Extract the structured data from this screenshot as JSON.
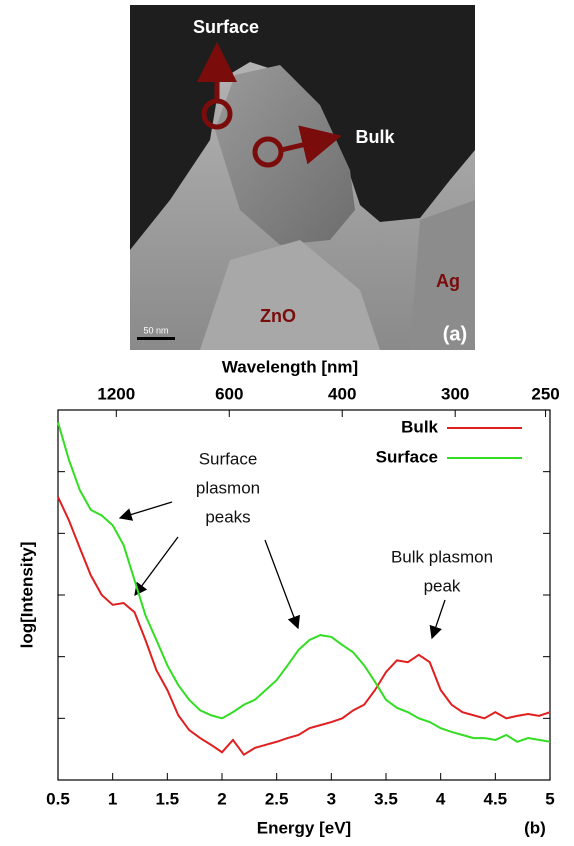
{
  "image": {
    "labels": [
      "Surface",
      "Bulk",
      "ZnO",
      "Ag"
    ],
    "scale_bar": "50 nm",
    "panel": "(a)"
  },
  "chart_data": {
    "type": "line",
    "panel": "(b)",
    "x_label": "Energy [eV]",
    "x2_label": "Wavelength [nm]",
    "y_label": "log[Intensity]",
    "xlim": [
      0.5,
      5
    ],
    "xticks": [
      0.5,
      1,
      1.5,
      2,
      2.5,
      3,
      3.5,
      4,
      4.5,
      5
    ],
    "x2ticks": [
      1200,
      600,
      400,
      300,
      250
    ],
    "ylim": [
      0,
      6
    ],
    "yticks": [
      1,
      2,
      3,
      4,
      5
    ],
    "legend": "upper right",
    "x": [
      0.5,
      0.6,
      0.7,
      0.8,
      0.9,
      1.0,
      1.1,
      1.2,
      1.3,
      1.4,
      1.5,
      1.6,
      1.7,
      1.8,
      1.9,
      2.0,
      2.1,
      2.2,
      2.3,
      2.4,
      2.5,
      2.6,
      2.7,
      2.8,
      2.9,
      3.0,
      3.1,
      3.2,
      3.3,
      3.4,
      3.5,
      3.6,
      3.7,
      3.8,
      3.9,
      4.0,
      4.1,
      4.2,
      4.3,
      4.4,
      4.5,
      4.6,
      4.7,
      4.8,
      4.9,
      5.0
    ],
    "series": [
      {
        "name": "Bulk",
        "color": "#e02020",
        "values": [
          4.59,
          4.21,
          3.76,
          3.32,
          3.0,
          2.84,
          2.87,
          2.72,
          2.27,
          1.78,
          1.46,
          1.05,
          0.81,
          0.68,
          0.57,
          0.45,
          0.65,
          0.41,
          0.52,
          0.57,
          0.62,
          0.68,
          0.73,
          0.84,
          0.89,
          0.94,
          1.0,
          1.13,
          1.22,
          1.46,
          1.75,
          1.94,
          1.91,
          2.03,
          1.91,
          1.46,
          1.22,
          1.1,
          1.05,
          1.0,
          1.1,
          1.0,
          1.04,
          1.07,
          1.04,
          1.1
        ]
      },
      {
        "name": "Surface",
        "color": "#33dd22",
        "values": [
          5.8,
          5.19,
          4.7,
          4.38,
          4.29,
          4.13,
          3.81,
          3.24,
          2.67,
          2.27,
          1.86,
          1.54,
          1.3,
          1.13,
          1.05,
          1.0,
          1.1,
          1.22,
          1.3,
          1.46,
          1.62,
          1.86,
          2.11,
          2.27,
          2.35,
          2.32,
          2.19,
          2.07,
          1.86,
          1.59,
          1.3,
          1.17,
          1.1,
          1.0,
          0.94,
          0.84,
          0.78,
          0.73,
          0.68,
          0.68,
          0.65,
          0.73,
          0.62,
          0.68,
          0.65,
          0.62
        ]
      }
    ],
    "annotations": [
      {
        "lines": [
          "Surface",
          "plasmon",
          "peaks"
        ]
      },
      {
        "lines": [
          "Bulk plasmon",
          "peak"
        ]
      }
    ]
  }
}
